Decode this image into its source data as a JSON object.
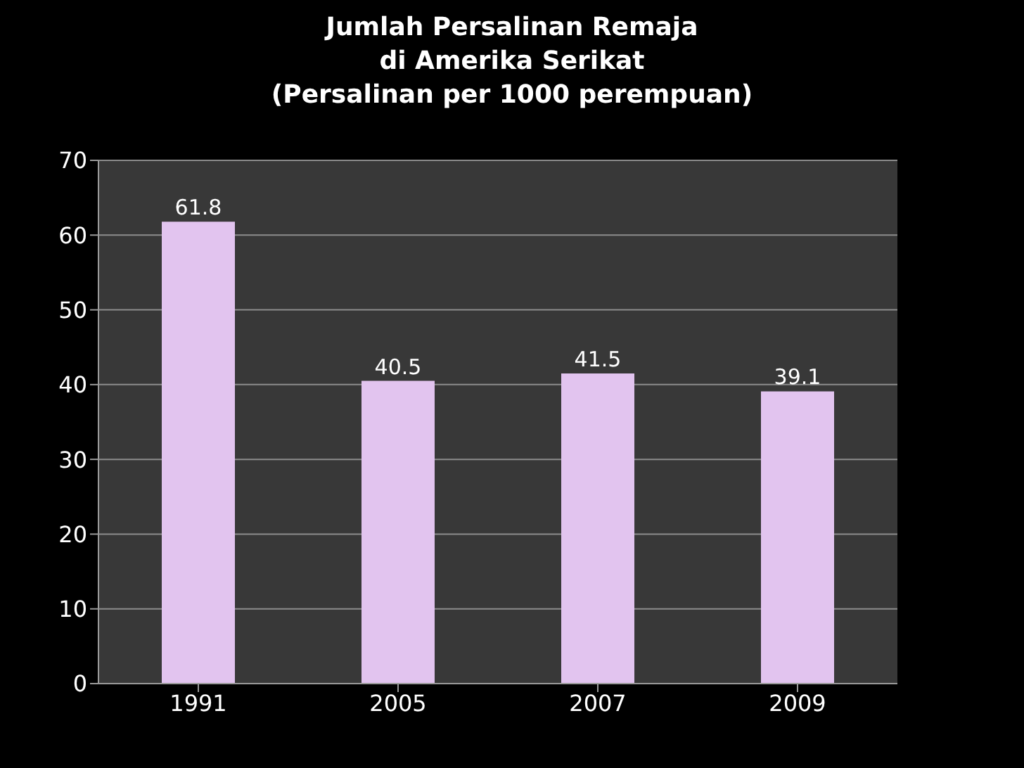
{
  "chart_data": {
    "type": "bar",
    "title": "Jumlah Persalinan Remaja\ndi Amerika Serikat",
    "subtitle": "(Persalinan per 1000 perempuan)",
    "categories": [
      "1991",
      "2005",
      "2007",
      "2009"
    ],
    "values": [
      61.8,
      40.5,
      41.5,
      39.1
    ],
    "color": "#e2c4ef",
    "ylim": [
      0,
      70
    ],
    "yticks": [
      0,
      10,
      20,
      30,
      40,
      50,
      60,
      70
    ],
    "grid": "y",
    "data_labels": true
  }
}
